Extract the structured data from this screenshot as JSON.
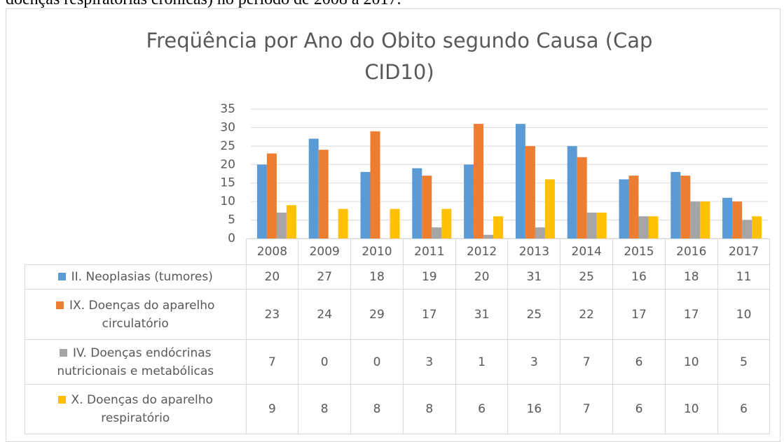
{
  "caption": "doenças respiratórias crônicas) no período de 2008 a 2017.",
  "chart_data": {
    "type": "bar",
    "title": "Freqüência por Ano do Obito segundo Causa (Cap CID10)",
    "categories": [
      "2008",
      "2009",
      "2010",
      "2011",
      "2012",
      "2013",
      "2014",
      "2015",
      "2016",
      "2017"
    ],
    "series": [
      {
        "name": "II.  Neoplasias (tumores)",
        "color": "#5b9bd5",
        "values": [
          20,
          27,
          18,
          19,
          20,
          31,
          25,
          16,
          18,
          11
        ]
      },
      {
        "name": "IX.  Doenças do aparelho circulatório",
        "color": "#ed7d31",
        "values": [
          23,
          24,
          29,
          17,
          31,
          25,
          22,
          17,
          17,
          10
        ]
      },
      {
        "name": "IV.  Doenças endócrinas nutricionais e metabólicas",
        "color": "#a5a5a5",
        "values": [
          7,
          0,
          0,
          3,
          1,
          3,
          7,
          6,
          10,
          5
        ]
      },
      {
        "name": "X.   Doenças do aparelho respiratório",
        "color": "#ffc000",
        "values": [
          9,
          8,
          8,
          8,
          6,
          16,
          7,
          6,
          10,
          6
        ]
      }
    ],
    "ylim": [
      0,
      35
    ],
    "yticks": [
      0,
      5,
      10,
      15,
      20,
      25,
      30,
      35
    ],
    "grid": true,
    "data_table": true
  }
}
